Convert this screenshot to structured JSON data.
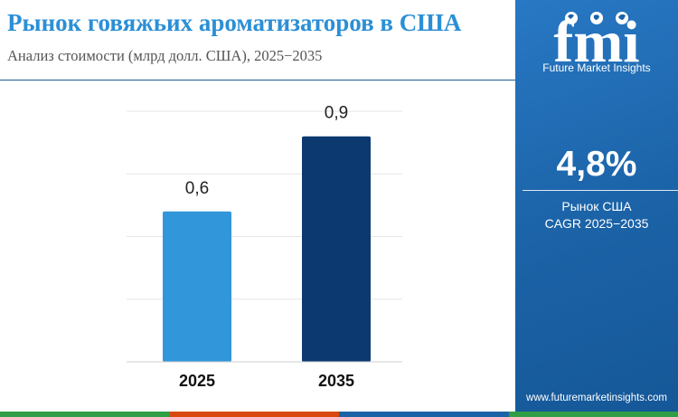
{
  "header": {
    "title": "Рынок говяжьих ароматизаторов в США",
    "subtitle": "Анализ стоимости (млрд долл. США), 2025−2035"
  },
  "brand": {
    "logo_text": "fmi",
    "name": "Future Market Insights",
    "url": "www.futuremarketinsights.com"
  },
  "kpi": {
    "value": "4,8%",
    "label_line1": "Рынок США",
    "label_line2": "CAGR 2025−2035"
  },
  "colors": {
    "title": "#2b8fd6",
    "bar_2025": "#3196da",
    "bar_2035": "#0c3a70",
    "panel": "#1b62a6",
    "footer": [
      "#2f9e44",
      "#d9480f",
      "#1b62a6",
      "#2f9e44"
    ]
  },
  "chart_data": {
    "type": "bar",
    "categories": [
      "2025",
      "2035"
    ],
    "values": [
      0.6,
      0.9
    ],
    "value_labels": [
      "0,6",
      "0,9"
    ],
    "colors": [
      "#3196da",
      "#0c3a70"
    ],
    "title": "",
    "xlabel": "",
    "ylabel": "",
    "ylim": [
      0,
      1.0
    ],
    "grid": true
  }
}
